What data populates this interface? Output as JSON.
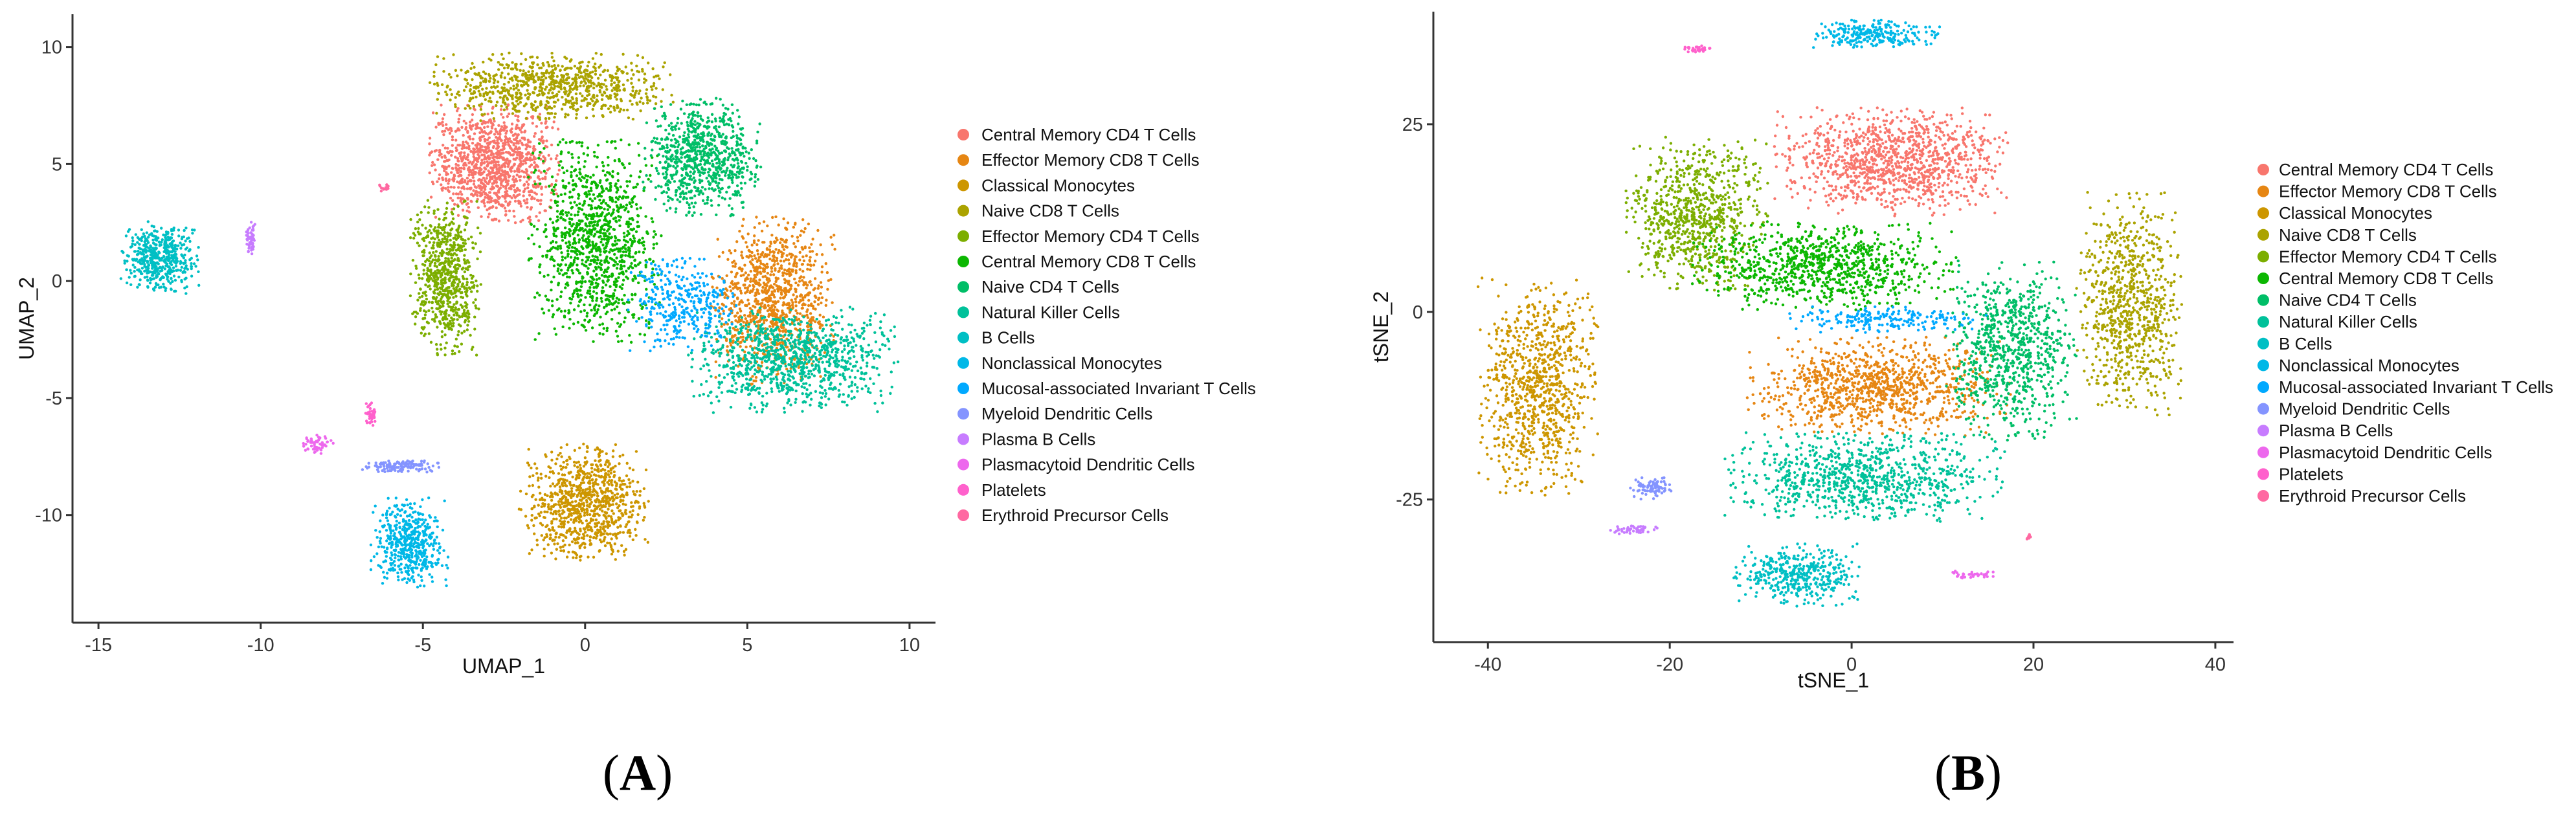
{
  "chart_data": [
    {
      "type": "scatter",
      "panel_label": "A",
      "xlabel": "UMAP_1",
      "ylabel": "UMAP_2",
      "xlim": [
        -15.8,
        10.8
      ],
      "ylim": [
        -14.6,
        11.4
      ],
      "xticks": [
        -15,
        -10,
        -5,
        0,
        5,
        10
      ],
      "yticks": [
        10,
        5,
        0,
        -5,
        -10
      ],
      "legend_position": "right",
      "clusters": [
        {
          "label": "Central Memory CD4 T Cells",
          "color": "#F8766D",
          "center": [
            -2.8,
            5.0
          ],
          "spread": [
            1.7,
            2.1
          ],
          "n": 1100
        },
        {
          "label": "Effector Memory CD8 T Cells",
          "color": "#E68613",
          "center": [
            5.8,
            -0.8
          ],
          "spread": [
            1.6,
            3.0
          ],
          "n": 1000
        },
        {
          "label": "Classical Monocytes",
          "color": "#CD9600",
          "center": [
            0.0,
            -9.5
          ],
          "spread": [
            1.7,
            2.1
          ],
          "n": 900
        },
        {
          "label": "Naive CD8 T Cells",
          "color": "#ABA300",
          "center": [
            -1.0,
            8.3
          ],
          "spread": [
            3.2,
            1.2
          ],
          "n": 800
        },
        {
          "label": "Effector Memory CD4 T Cells",
          "color": "#7CAE00",
          "center": [
            -4.3,
            0.2
          ],
          "spread": [
            0.9,
            2.8
          ],
          "n": 700
        },
        {
          "label": "Central Memory CD8 T Cells",
          "color": "#0CB702",
          "center": [
            0.3,
            1.7
          ],
          "spread": [
            1.7,
            3.6
          ],
          "n": 1100
        },
        {
          "label": "Naive CD4 T Cells",
          "color": "#00BE67",
          "center": [
            3.6,
            5.3
          ],
          "spread": [
            1.5,
            2.1
          ],
          "n": 800
        },
        {
          "label": "Natural Killer Cells",
          "color": "#00C19A",
          "center": [
            6.4,
            -3.4
          ],
          "spread": [
            2.7,
            1.9
          ],
          "n": 1000
        },
        {
          "label": "B Cells",
          "color": "#00BFC4",
          "center": [
            -13.1,
            1.0
          ],
          "spread": [
            1.0,
            1.3
          ],
          "n": 500
        },
        {
          "label": "Nonclassical Monocytes",
          "color": "#00B8E7",
          "center": [
            -5.4,
            -11.2
          ],
          "spread": [
            1.0,
            1.6
          ],
          "n": 500
        },
        {
          "label": "Mucosal-associated Invariant T Cells",
          "color": "#00A9FF",
          "center": [
            3.0,
            -1.0
          ],
          "spread": [
            1.4,
            1.7
          ],
          "n": 350
        },
        {
          "label": "Myeloid Dendritic Cells",
          "color": "#8494FF",
          "center": [
            -5.7,
            -7.9
          ],
          "spread": [
            1.0,
            0.22
          ],
          "n": 120
        },
        {
          "label": "Plasma B Cells",
          "color": "#C77CFF",
          "center": [
            -10.3,
            1.8
          ],
          "spread": [
            0.12,
            0.6
          ],
          "n": 60
        },
        {
          "label": "Plasmacytoid Dendritic Cells",
          "color": "#ED68ED",
          "center": [
            -8.3,
            -7.0
          ],
          "spread": [
            0.45,
            0.35
          ],
          "n": 60
        },
        {
          "label": "Platelets",
          "color": "#FF61CC",
          "center": [
            -6.6,
            -5.7
          ],
          "spread": [
            0.15,
            0.55
          ],
          "n": 40
        },
        {
          "label": "Erythroid Precursor Cells",
          "color": "#FF68A1",
          "center": [
            -6.2,
            4.0
          ],
          "spread": [
            0.15,
            0.15
          ],
          "n": 15
        }
      ]
    },
    {
      "type": "scatter",
      "panel_label": "B",
      "xlabel": "tSNE_1",
      "ylabel": "tSNE_2",
      "xlim": [
        -46,
        42
      ],
      "ylim": [
        -44,
        40
      ],
      "xticks": [
        -40,
        -20,
        0,
        20,
        40
      ],
      "yticks": [
        25,
        0,
        -25
      ],
      "legend_position": "right",
      "clusters": [
        {
          "label": "Central Memory CD4 T Cells",
          "color": "#F8766D",
          "center": [
            4.5,
            20.0
          ],
          "spread": [
            11.0,
            6.0
          ],
          "n": 1100
        },
        {
          "label": "Effector Memory CD8 T Cells",
          "color": "#E68613",
          "center": [
            3.0,
            -10.0
          ],
          "spread": [
            12.0,
            5.5
          ],
          "n": 1000
        },
        {
          "label": "Classical Monocytes",
          "color": "#CD9600",
          "center": [
            -34.5,
            -10.0
          ],
          "spread": [
            5.5,
            12.0
          ],
          "n": 900
        },
        {
          "label": "Naive CD8 T Cells",
          "color": "#ABA300",
          "center": [
            30.5,
            1.0
          ],
          "spread": [
            4.8,
            12.5
          ],
          "n": 800
        },
        {
          "label": "Effector Memory CD4 T Cells",
          "color": "#7CAE00",
          "center": [
            -17.0,
            13.0
          ],
          "spread": [
            6.5,
            8.5
          ],
          "n": 800
        },
        {
          "label": "Central Memory CD8 T Cells",
          "color": "#0CB702",
          "center": [
            -3.0,
            6.0
          ],
          "spread": [
            12.0,
            5.0
          ],
          "n": 900
        },
        {
          "label": "Naive CD4 T Cells",
          "color": "#00BE67",
          "center": [
            17.5,
            -5.0
          ],
          "spread": [
            6.0,
            10.0
          ],
          "n": 800
        },
        {
          "label": "Natural Killer Cells",
          "color": "#00C19A",
          "center": [
            1.5,
            -22.0
          ],
          "spread": [
            13.0,
            5.0
          ],
          "n": 900
        },
        {
          "label": "B Cells",
          "color": "#00BFC4",
          "center": [
            -6.0,
            -35.0
          ],
          "spread": [
            6.0,
            3.5
          ],
          "n": 400
        },
        {
          "label": "Nonclassical Monocytes",
          "color": "#00B8E7",
          "center": [
            2.5,
            37.0
          ],
          "spread": [
            6.0,
            1.6
          ],
          "n": 250
        },
        {
          "label": "Mucosal-associated Invariant T Cells",
          "color": "#00A9FF",
          "center": [
            4.0,
            -1.0
          ],
          "spread": [
            9.0,
            1.5
          ],
          "n": 200
        },
        {
          "label": "Myeloid Dendritic Cells",
          "color": "#8494FF",
          "center": [
            -22.0,
            -23.5
          ],
          "spread": [
            2.0,
            1.2
          ],
          "n": 80
        },
        {
          "label": "Plasma B Cells",
          "color": "#C77CFF",
          "center": [
            -24.0,
            -29.0
          ],
          "spread": [
            2.2,
            0.5
          ],
          "n": 50
        },
        {
          "label": "Plasmacytoid Dendritic Cells",
          "color": "#ED68ED",
          "center": [
            13.0,
            -35.0
          ],
          "spread": [
            2.5,
            0.4
          ],
          "n": 40
        },
        {
          "label": "Platelets",
          "color": "#FF61CC",
          "center": [
            -17.0,
            35.0
          ],
          "spread": [
            1.5,
            0.4
          ],
          "n": 30
        },
        {
          "label": "Erythroid Precursor Cells",
          "color": "#FF68A1",
          "center": [
            19.5,
            -30.0
          ],
          "spread": [
            0.3,
            0.3
          ],
          "n": 10
        }
      ]
    }
  ]
}
